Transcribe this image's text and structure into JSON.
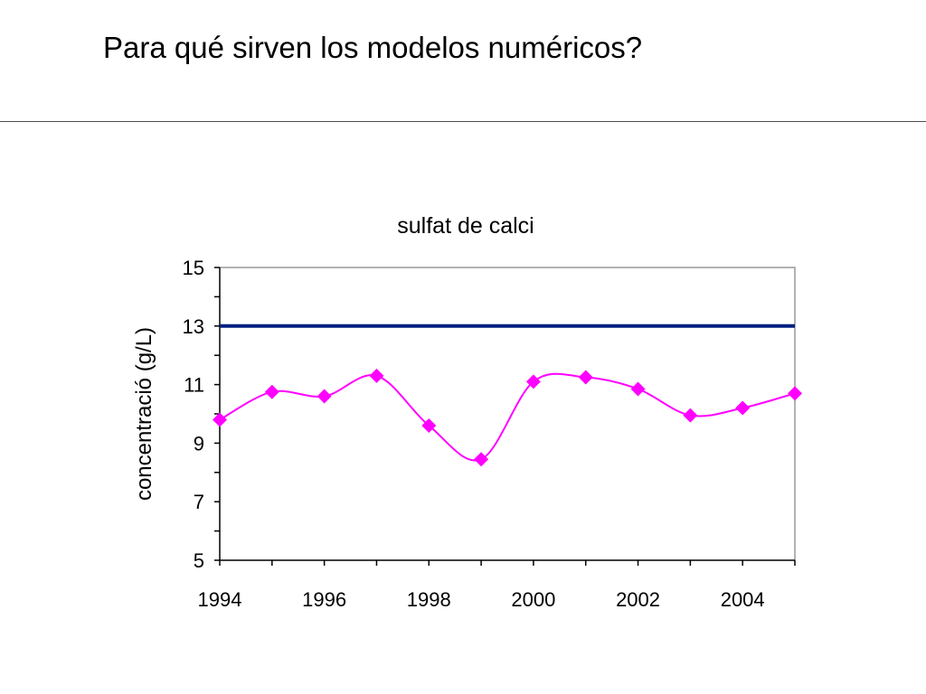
{
  "slide": {
    "title": "Para qué sirven los modelos numéricos?"
  },
  "colors": {
    "series": "#ff00ff",
    "reference_line": "#002080",
    "axis": "#000000",
    "plot_border": "#999999"
  },
  "chart_data": {
    "type": "line",
    "title": "sulfat de calci",
    "xlabel": "",
    "ylabel": "concentració (g/L)",
    "xlim": [
      1994,
      2005
    ],
    "ylim": [
      5,
      15
    ],
    "x_ticks": [
      1994,
      1996,
      1998,
      2000,
      2002,
      2004
    ],
    "y_ticks": [
      5,
      7,
      9,
      11,
      13,
      15
    ],
    "grid": false,
    "legend": "none",
    "series": [
      {
        "marker": "diamond",
        "smooth": true,
        "x": [
          1994,
          1995,
          1996,
          1997,
          1998,
          1999,
          2000,
          2001,
          2002,
          2003,
          2004,
          2005
        ],
        "y": [
          9.8,
          10.75,
          10.6,
          11.3,
          9.6,
          8.45,
          11.1,
          11.25,
          10.85,
          9.95,
          10.2,
          10.7
        ]
      }
    ],
    "reference_lines": [
      {
        "orientation": "horizontal",
        "y": 13
      }
    ]
  }
}
